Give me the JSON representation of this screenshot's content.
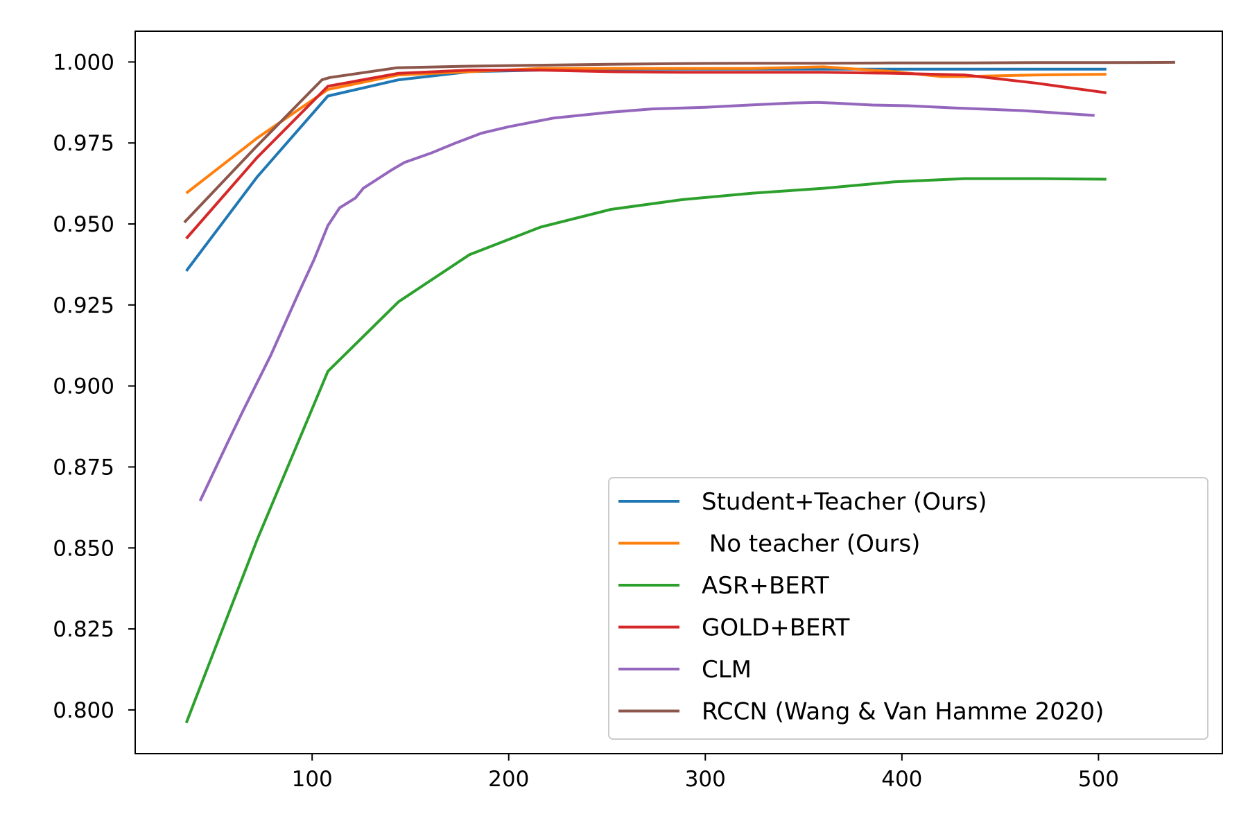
{
  "chart_data": {
    "type": "line",
    "title": "",
    "xlabel": "",
    "ylabel": "",
    "xlim": [
      10,
      563
    ],
    "ylim": [
      0.7865,
      1.0095
    ],
    "xticks": [
      100,
      200,
      300,
      400,
      500
    ],
    "yticks": [
      0.8,
      0.825,
      0.85,
      0.875,
      0.9,
      0.925,
      0.95,
      0.975,
      1.0
    ],
    "xtick_labels": [
      "100",
      "200",
      "300",
      "400",
      "500"
    ],
    "ytick_labels": [
      "0.800",
      "0.825",
      "0.850",
      "0.875",
      "0.900",
      "0.925",
      "0.950",
      "0.975",
      "1.000"
    ],
    "grid": false,
    "legend_position": "lower-right",
    "series": [
      {
        "name": "Student+Teacher (Ours)",
        "color": "#1f77b4",
        "points": [
          [
            36,
            0.9355
          ],
          [
            72,
            0.9645
          ],
          [
            108,
            0.9895
          ],
          [
            144,
            0.9945
          ],
          [
            180,
            0.997
          ],
          [
            216,
            0.9975
          ],
          [
            252,
            0.9978
          ],
          [
            288,
            0.9978
          ],
          [
            324,
            0.9978
          ],
          [
            360,
            0.9978
          ],
          [
            396,
            0.9978
          ],
          [
            432,
            0.9978
          ],
          [
            468,
            0.9978
          ],
          [
            504,
            0.9978
          ]
        ]
      },
      {
        "name": " No teacher (Ours)",
        "color": "#ff7f0e",
        "points": [
          [
            36,
            0.9595
          ],
          [
            72,
            0.9765
          ],
          [
            108,
            0.9915
          ],
          [
            144,
            0.996
          ],
          [
            180,
            0.997
          ],
          [
            216,
            0.998
          ],
          [
            252,
            0.998
          ],
          [
            288,
            0.998
          ],
          [
            324,
            0.998
          ],
          [
            360,
            0.9985
          ],
          [
            396,
            0.997
          ],
          [
            420,
            0.9955
          ],
          [
            432,
            0.9955
          ],
          [
            468,
            0.996
          ],
          [
            504,
            0.9962
          ]
        ]
      },
      {
        "name": "ASR+BERT",
        "color": "#2ca02c",
        "points": [
          [
            36,
            0.796
          ],
          [
            72,
            0.8525
          ],
          [
            108,
            0.9045
          ],
          [
            144,
            0.926
          ],
          [
            180,
            0.9405
          ],
          [
            216,
            0.949
          ],
          [
            252,
            0.9545
          ],
          [
            288,
            0.9575
          ],
          [
            324,
            0.9595
          ],
          [
            360,
            0.961
          ],
          [
            396,
            0.963
          ],
          [
            432,
            0.964
          ],
          [
            468,
            0.964
          ],
          [
            504,
            0.9638
          ]
        ]
      },
      {
        "name": "GOLD+BERT",
        "color": "#d62728",
        "points": [
          [
            36,
            0.9455
          ],
          [
            72,
            0.9705
          ],
          [
            108,
            0.9925
          ],
          [
            144,
            0.9965
          ],
          [
            180,
            0.9975
          ],
          [
            216,
            0.9975
          ],
          [
            252,
            0.997
          ],
          [
            288,
            0.9968
          ],
          [
            324,
            0.9968
          ],
          [
            360,
            0.9968
          ],
          [
            396,
            0.9965
          ],
          [
            432,
            0.996
          ],
          [
            468,
            0.9935
          ],
          [
            504,
            0.9905
          ]
        ]
      },
      {
        "name": "CLM",
        "color": "#9467bd",
        "points": [
          [
            43,
            0.8645
          ],
          [
            57,
            0.8825
          ],
          [
            65,
            0.8925
          ],
          [
            79,
            0.9095
          ],
          [
            93,
            0.9285
          ],
          [
            101,
            0.939
          ],
          [
            108,
            0.9495
          ],
          [
            114,
            0.955
          ],
          [
            122,
            0.958
          ],
          [
            126,
            0.961
          ],
          [
            140,
            0.9665
          ],
          [
            147,
            0.969
          ],
          [
            161,
            0.972
          ],
          [
            173,
            0.975
          ],
          [
            186,
            0.978
          ],
          [
            200,
            0.98
          ],
          [
            223,
            0.9827
          ],
          [
            252,
            0.9845
          ],
          [
            273,
            0.9855
          ],
          [
            300,
            0.986
          ],
          [
            325,
            0.9868
          ],
          [
            343,
            0.9873
          ],
          [
            357,
            0.9875
          ],
          [
            366,
            0.9873
          ],
          [
            385,
            0.9867
          ],
          [
            403,
            0.9865
          ],
          [
            427,
            0.9858
          ],
          [
            461,
            0.985
          ],
          [
            498,
            0.9835
          ]
        ]
      },
      {
        "name": "RCCN (Wang & Van Hamme 2020)",
        "color": "#8c564b",
        "points": [
          [
            35,
            0.9505
          ],
          [
            71,
            0.9735
          ],
          [
            105,
            0.9945
          ],
          [
            109,
            0.9952
          ],
          [
            143,
            0.9982
          ],
          [
            179,
            0.9987
          ],
          [
            215,
            0.999
          ],
          [
            251,
            0.9993
          ],
          [
            287,
            0.9995
          ],
          [
            323,
            0.9996
          ],
          [
            359,
            0.9996
          ],
          [
            395,
            0.9997
          ],
          [
            431,
            0.9997
          ],
          [
            467,
            0.9998
          ],
          [
            503,
            0.9998
          ],
          [
            539,
            0.9999
          ]
        ]
      }
    ]
  }
}
